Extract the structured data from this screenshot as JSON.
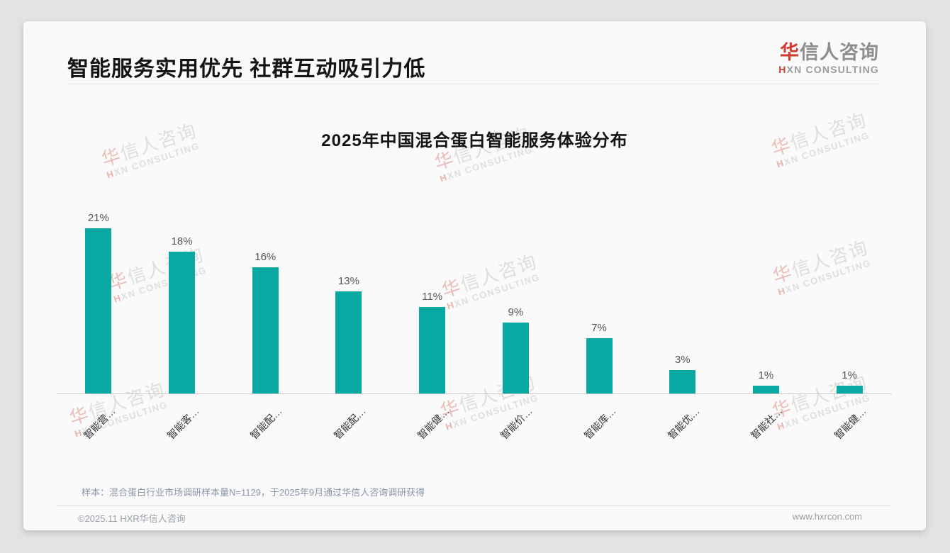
{
  "header": {
    "title": "智能服务实用优先 社群互动吸引力低"
  },
  "logo": {
    "cn_first": "华",
    "cn_rest": "信人咨询",
    "en_first": "H",
    "en_rest": "XN CONSULTING"
  },
  "chart_data": {
    "type": "bar",
    "title": "2025年中国混合蛋白智能服务体验分布",
    "categories": [
      "智能营…",
      "智能客…",
      "智能配…",
      "智能配…",
      "智能健…",
      "智能价…",
      "智能库…",
      "智能优…",
      "智能社…",
      "智能健…"
    ],
    "values": [
      21,
      18,
      16,
      13,
      11,
      9,
      7,
      3,
      1,
      1
    ],
    "value_labels": [
      "21%",
      "18%",
      "16%",
      "13%",
      "11%",
      "9%",
      "7%",
      "3%",
      "1%",
      "1%"
    ],
    "unit": "%",
    "ylim": [
      0,
      24
    ],
    "grid": false,
    "legend": "none",
    "bar_color": "#0aa8a2",
    "xlabel": "",
    "ylabel": ""
  },
  "footnote": "样本：混合蛋白行业市场调研样本量N=1129，于2025年9月通过华信人咨询调研获得",
  "footer": {
    "copyright": "©2025.11 HXR华信人咨询",
    "website": "www.hxrcon.com"
  },
  "watermark": {
    "cn_first": "华",
    "cn_rest": "信人咨询",
    "en_first": "H",
    "en_rest": "XN CONSULTING"
  },
  "colors": {
    "accent_teal": "#0aa8a2",
    "brand_red": "#cf3a30",
    "card_background": "#fafafa",
    "page_background": "#e3e3e3"
  }
}
